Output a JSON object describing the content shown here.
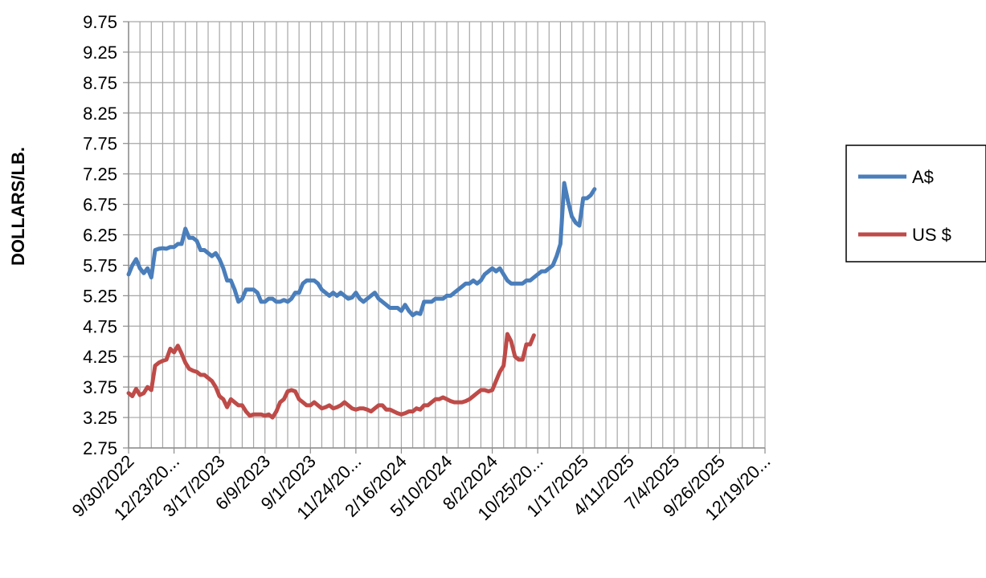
{
  "chart_data": {
    "type": "line",
    "title": "",
    "xlabel": "",
    "ylabel": "DOLLARS/LB.",
    "ylim": [
      2.75,
      9.75
    ],
    "yticks": [
      "9.75",
      "9.25",
      "8.75",
      "8.25",
      "7.75",
      "7.25",
      "6.75",
      "6.25",
      "5.75",
      "5.25",
      "4.75",
      "4.25",
      "3.75",
      "3.25",
      "2.75"
    ],
    "xtick_labels": [
      "9/30/2022",
      "12/23/20...",
      "3/17/2023",
      "6/9/2023",
      "9/1/2023",
      "11/24/20...",
      "2/16/2024",
      "5/10/2024",
      "8/2/2024",
      "10/25/20...",
      "1/17/2025",
      "4/11/2025",
      "7/4/2025",
      "9/26/2025",
      "12/19/20..."
    ],
    "xtick_dates": [
      "2022-09-30",
      "2022-12-23",
      "2023-03-17",
      "2023-06-09",
      "2023-09-01",
      "2023-11-24",
      "2024-02-16",
      "2024-05-10",
      "2024-08-02",
      "2024-10-25",
      "2025-01-17",
      "2025-04-11",
      "2025-07-04",
      "2025-09-26",
      "2025-12-19"
    ],
    "grid": true,
    "legend_position": "right",
    "series": [
      {
        "name": "A$",
        "color": "#4a7ebb",
        "points": [
          [
            "2022-09-30",
            5.6
          ],
          [
            "2022-10-07",
            5.75
          ],
          [
            "2022-10-14",
            5.85
          ],
          [
            "2022-10-21",
            5.7
          ],
          [
            "2022-10-28",
            5.62
          ],
          [
            "2022-11-04",
            5.7
          ],
          [
            "2022-11-11",
            5.55
          ],
          [
            "2022-11-18",
            6.0
          ],
          [
            "2022-11-25",
            6.02
          ],
          [
            "2022-12-02",
            6.03
          ],
          [
            "2022-12-09",
            6.02
          ],
          [
            "2022-12-16",
            6.05
          ],
          [
            "2022-12-23",
            6.05
          ],
          [
            "2022-12-30",
            6.1
          ],
          [
            "2023-01-06",
            6.1
          ],
          [
            "2023-01-13",
            6.35
          ],
          [
            "2023-01-20",
            6.2
          ],
          [
            "2023-01-27",
            6.2
          ],
          [
            "2023-02-03",
            6.15
          ],
          [
            "2023-02-10",
            6.0
          ],
          [
            "2023-02-17",
            6.0
          ],
          [
            "2023-02-24",
            5.95
          ],
          [
            "2023-03-03",
            5.9
          ],
          [
            "2023-03-10",
            5.95
          ],
          [
            "2023-03-17",
            5.85
          ],
          [
            "2023-03-24",
            5.7
          ],
          [
            "2023-03-31",
            5.5
          ],
          [
            "2023-04-07",
            5.5
          ],
          [
            "2023-04-14",
            5.35
          ],
          [
            "2023-04-21",
            5.15
          ],
          [
            "2023-04-28",
            5.2
          ],
          [
            "2023-05-05",
            5.35
          ],
          [
            "2023-05-12",
            5.35
          ],
          [
            "2023-05-19",
            5.35
          ],
          [
            "2023-05-26",
            5.3
          ],
          [
            "2023-06-02",
            5.15
          ],
          [
            "2023-06-09",
            5.15
          ],
          [
            "2023-06-16",
            5.2
          ],
          [
            "2023-06-23",
            5.2
          ],
          [
            "2023-06-30",
            5.15
          ],
          [
            "2023-07-07",
            5.15
          ],
          [
            "2023-07-14",
            5.18
          ],
          [
            "2023-07-21",
            5.15
          ],
          [
            "2023-07-28",
            5.2
          ],
          [
            "2023-08-04",
            5.3
          ],
          [
            "2023-08-11",
            5.3
          ],
          [
            "2023-08-18",
            5.45
          ],
          [
            "2023-08-25",
            5.5
          ],
          [
            "2023-09-01",
            5.5
          ],
          [
            "2023-09-08",
            5.5
          ],
          [
            "2023-09-15",
            5.45
          ],
          [
            "2023-09-22",
            5.35
          ],
          [
            "2023-09-29",
            5.3
          ],
          [
            "2023-10-06",
            5.25
          ],
          [
            "2023-10-13",
            5.3
          ],
          [
            "2023-10-20",
            5.25
          ],
          [
            "2023-10-27",
            5.3
          ],
          [
            "2023-11-03",
            5.25
          ],
          [
            "2023-11-10",
            5.2
          ],
          [
            "2023-11-17",
            5.22
          ],
          [
            "2023-11-24",
            5.3
          ],
          [
            "2023-12-01",
            5.2
          ],
          [
            "2023-12-08",
            5.15
          ],
          [
            "2023-12-15",
            5.2
          ],
          [
            "2023-12-22",
            5.25
          ],
          [
            "2023-12-29",
            5.3
          ],
          [
            "2024-01-05",
            5.2
          ],
          [
            "2024-01-12",
            5.15
          ],
          [
            "2024-01-19",
            5.1
          ],
          [
            "2024-01-26",
            5.05
          ],
          [
            "2024-02-02",
            5.05
          ],
          [
            "2024-02-09",
            5.05
          ],
          [
            "2024-02-16",
            5.0
          ],
          [
            "2024-02-23",
            5.1
          ],
          [
            "2024-03-01",
            5.0
          ],
          [
            "2024-03-08",
            4.93
          ],
          [
            "2024-03-15",
            4.97
          ],
          [
            "2024-03-22",
            4.95
          ],
          [
            "2024-03-29",
            5.15
          ],
          [
            "2024-04-05",
            5.15
          ],
          [
            "2024-04-12",
            5.15
          ],
          [
            "2024-04-19",
            5.2
          ],
          [
            "2024-04-26",
            5.2
          ],
          [
            "2024-05-03",
            5.2
          ],
          [
            "2024-05-10",
            5.25
          ],
          [
            "2024-05-17",
            5.25
          ],
          [
            "2024-05-24",
            5.3
          ],
          [
            "2024-05-31",
            5.35
          ],
          [
            "2024-06-07",
            5.4
          ],
          [
            "2024-06-14",
            5.45
          ],
          [
            "2024-06-21",
            5.45
          ],
          [
            "2024-06-28",
            5.5
          ],
          [
            "2024-07-05",
            5.45
          ],
          [
            "2024-07-12",
            5.5
          ],
          [
            "2024-07-19",
            5.6
          ],
          [
            "2024-07-26",
            5.65
          ],
          [
            "2024-08-02",
            5.7
          ],
          [
            "2024-08-09",
            5.65
          ],
          [
            "2024-08-16",
            5.7
          ],
          [
            "2024-08-23",
            5.6
          ],
          [
            "2024-08-30",
            5.5
          ],
          [
            "2024-09-06",
            5.45
          ],
          [
            "2024-09-13",
            5.45
          ],
          [
            "2024-09-20",
            5.45
          ],
          [
            "2024-09-27",
            5.45
          ],
          [
            "2024-10-04",
            5.5
          ],
          [
            "2024-10-11",
            5.5
          ],
          [
            "2024-10-18",
            5.55
          ],
          [
            "2024-10-25",
            5.6
          ],
          [
            "2024-11-01",
            5.65
          ],
          [
            "2024-11-08",
            5.65
          ],
          [
            "2024-11-15",
            5.7
          ],
          [
            "2024-11-22",
            5.75
          ],
          [
            "2024-11-29",
            5.9
          ],
          [
            "2024-12-06",
            6.1
          ],
          [
            "2024-12-13",
            7.1
          ],
          [
            "2024-12-20",
            6.8
          ],
          [
            "2024-12-27",
            6.55
          ],
          [
            "2025-01-03",
            6.45
          ],
          [
            "2025-01-10",
            6.4
          ],
          [
            "2025-01-17",
            6.85
          ],
          [
            "2025-01-24",
            6.85
          ],
          [
            "2025-01-31",
            6.9
          ],
          [
            "2025-02-07",
            7.0
          ]
        ]
      },
      {
        "name": "US $",
        "color": "#be4b48",
        "points": [
          [
            "2022-09-30",
            3.65
          ],
          [
            "2022-10-07",
            3.6
          ],
          [
            "2022-10-14",
            3.72
          ],
          [
            "2022-10-21",
            3.62
          ],
          [
            "2022-10-28",
            3.65
          ],
          [
            "2022-11-04",
            3.75
          ],
          [
            "2022-11-11",
            3.7
          ],
          [
            "2022-11-18",
            4.1
          ],
          [
            "2022-11-25",
            4.15
          ],
          [
            "2022-12-02",
            4.18
          ],
          [
            "2022-12-09",
            4.2
          ],
          [
            "2022-12-16",
            4.38
          ],
          [
            "2022-12-23",
            4.32
          ],
          [
            "2022-12-30",
            4.43
          ],
          [
            "2023-01-06",
            4.3
          ],
          [
            "2023-01-13",
            4.15
          ],
          [
            "2023-01-20",
            4.05
          ],
          [
            "2023-01-27",
            4.02
          ],
          [
            "2023-02-03",
            4.0
          ],
          [
            "2023-02-10",
            3.95
          ],
          [
            "2023-02-17",
            3.95
          ],
          [
            "2023-02-24",
            3.9
          ],
          [
            "2023-03-03",
            3.85
          ],
          [
            "2023-03-10",
            3.75
          ],
          [
            "2023-03-17",
            3.6
          ],
          [
            "2023-03-24",
            3.55
          ],
          [
            "2023-03-31",
            3.42
          ],
          [
            "2023-04-07",
            3.55
          ],
          [
            "2023-04-14",
            3.5
          ],
          [
            "2023-04-21",
            3.45
          ],
          [
            "2023-04-28",
            3.45
          ],
          [
            "2023-05-05",
            3.35
          ],
          [
            "2023-05-12",
            3.28
          ],
          [
            "2023-05-19",
            3.3
          ],
          [
            "2023-05-26",
            3.3
          ],
          [
            "2023-06-02",
            3.3
          ],
          [
            "2023-06-09",
            3.28
          ],
          [
            "2023-06-16",
            3.3
          ],
          [
            "2023-06-23",
            3.25
          ],
          [
            "2023-06-30",
            3.35
          ],
          [
            "2023-07-07",
            3.5
          ],
          [
            "2023-07-14",
            3.55
          ],
          [
            "2023-07-21",
            3.68
          ],
          [
            "2023-07-28",
            3.7
          ],
          [
            "2023-08-04",
            3.68
          ],
          [
            "2023-08-11",
            3.55
          ],
          [
            "2023-08-18",
            3.5
          ],
          [
            "2023-08-25",
            3.45
          ],
          [
            "2023-09-01",
            3.45
          ],
          [
            "2023-09-08",
            3.5
          ],
          [
            "2023-09-15",
            3.45
          ],
          [
            "2023-09-22",
            3.4
          ],
          [
            "2023-09-29",
            3.42
          ],
          [
            "2023-10-06",
            3.45
          ],
          [
            "2023-10-13",
            3.4
          ],
          [
            "2023-10-20",
            3.42
          ],
          [
            "2023-10-27",
            3.45
          ],
          [
            "2023-11-03",
            3.5
          ],
          [
            "2023-11-10",
            3.45
          ],
          [
            "2023-11-17",
            3.4
          ],
          [
            "2023-11-24",
            3.38
          ],
          [
            "2023-12-01",
            3.4
          ],
          [
            "2023-12-08",
            3.4
          ],
          [
            "2023-12-15",
            3.38
          ],
          [
            "2023-12-22",
            3.35
          ],
          [
            "2023-12-29",
            3.4
          ],
          [
            "2024-01-05",
            3.45
          ],
          [
            "2024-01-12",
            3.45
          ],
          [
            "2024-01-19",
            3.38
          ],
          [
            "2024-01-26",
            3.38
          ],
          [
            "2024-02-02",
            3.35
          ],
          [
            "2024-02-09",
            3.32
          ],
          [
            "2024-02-16",
            3.3
          ],
          [
            "2024-02-23",
            3.32
          ],
          [
            "2024-03-01",
            3.35
          ],
          [
            "2024-03-08",
            3.35
          ],
          [
            "2024-03-15",
            3.4
          ],
          [
            "2024-03-22",
            3.38
          ],
          [
            "2024-03-29",
            3.45
          ],
          [
            "2024-04-05",
            3.45
          ],
          [
            "2024-04-12",
            3.5
          ],
          [
            "2024-04-19",
            3.55
          ],
          [
            "2024-04-26",
            3.55
          ],
          [
            "2024-05-03",
            3.58
          ],
          [
            "2024-05-10",
            3.55
          ],
          [
            "2024-05-17",
            3.52
          ],
          [
            "2024-05-24",
            3.5
          ],
          [
            "2024-05-31",
            3.5
          ],
          [
            "2024-06-07",
            3.5
          ],
          [
            "2024-06-14",
            3.52
          ],
          [
            "2024-06-21",
            3.55
          ],
          [
            "2024-06-28",
            3.6
          ],
          [
            "2024-07-05",
            3.65
          ],
          [
            "2024-07-12",
            3.7
          ],
          [
            "2024-07-19",
            3.7
          ],
          [
            "2024-07-26",
            3.68
          ],
          [
            "2024-08-02",
            3.7
          ],
          [
            "2024-08-09",
            3.85
          ],
          [
            "2024-08-16",
            4.0
          ],
          [
            "2024-08-23",
            4.1
          ],
          [
            "2024-08-30",
            4.62
          ],
          [
            "2024-09-06",
            4.5
          ],
          [
            "2024-09-13",
            4.25
          ],
          [
            "2024-09-20",
            4.2
          ],
          [
            "2024-09-27",
            4.2
          ],
          [
            "2024-10-04",
            4.45
          ],
          [
            "2024-10-11",
            4.45
          ],
          [
            "2024-10-18",
            4.6
          ]
        ]
      }
    ]
  }
}
